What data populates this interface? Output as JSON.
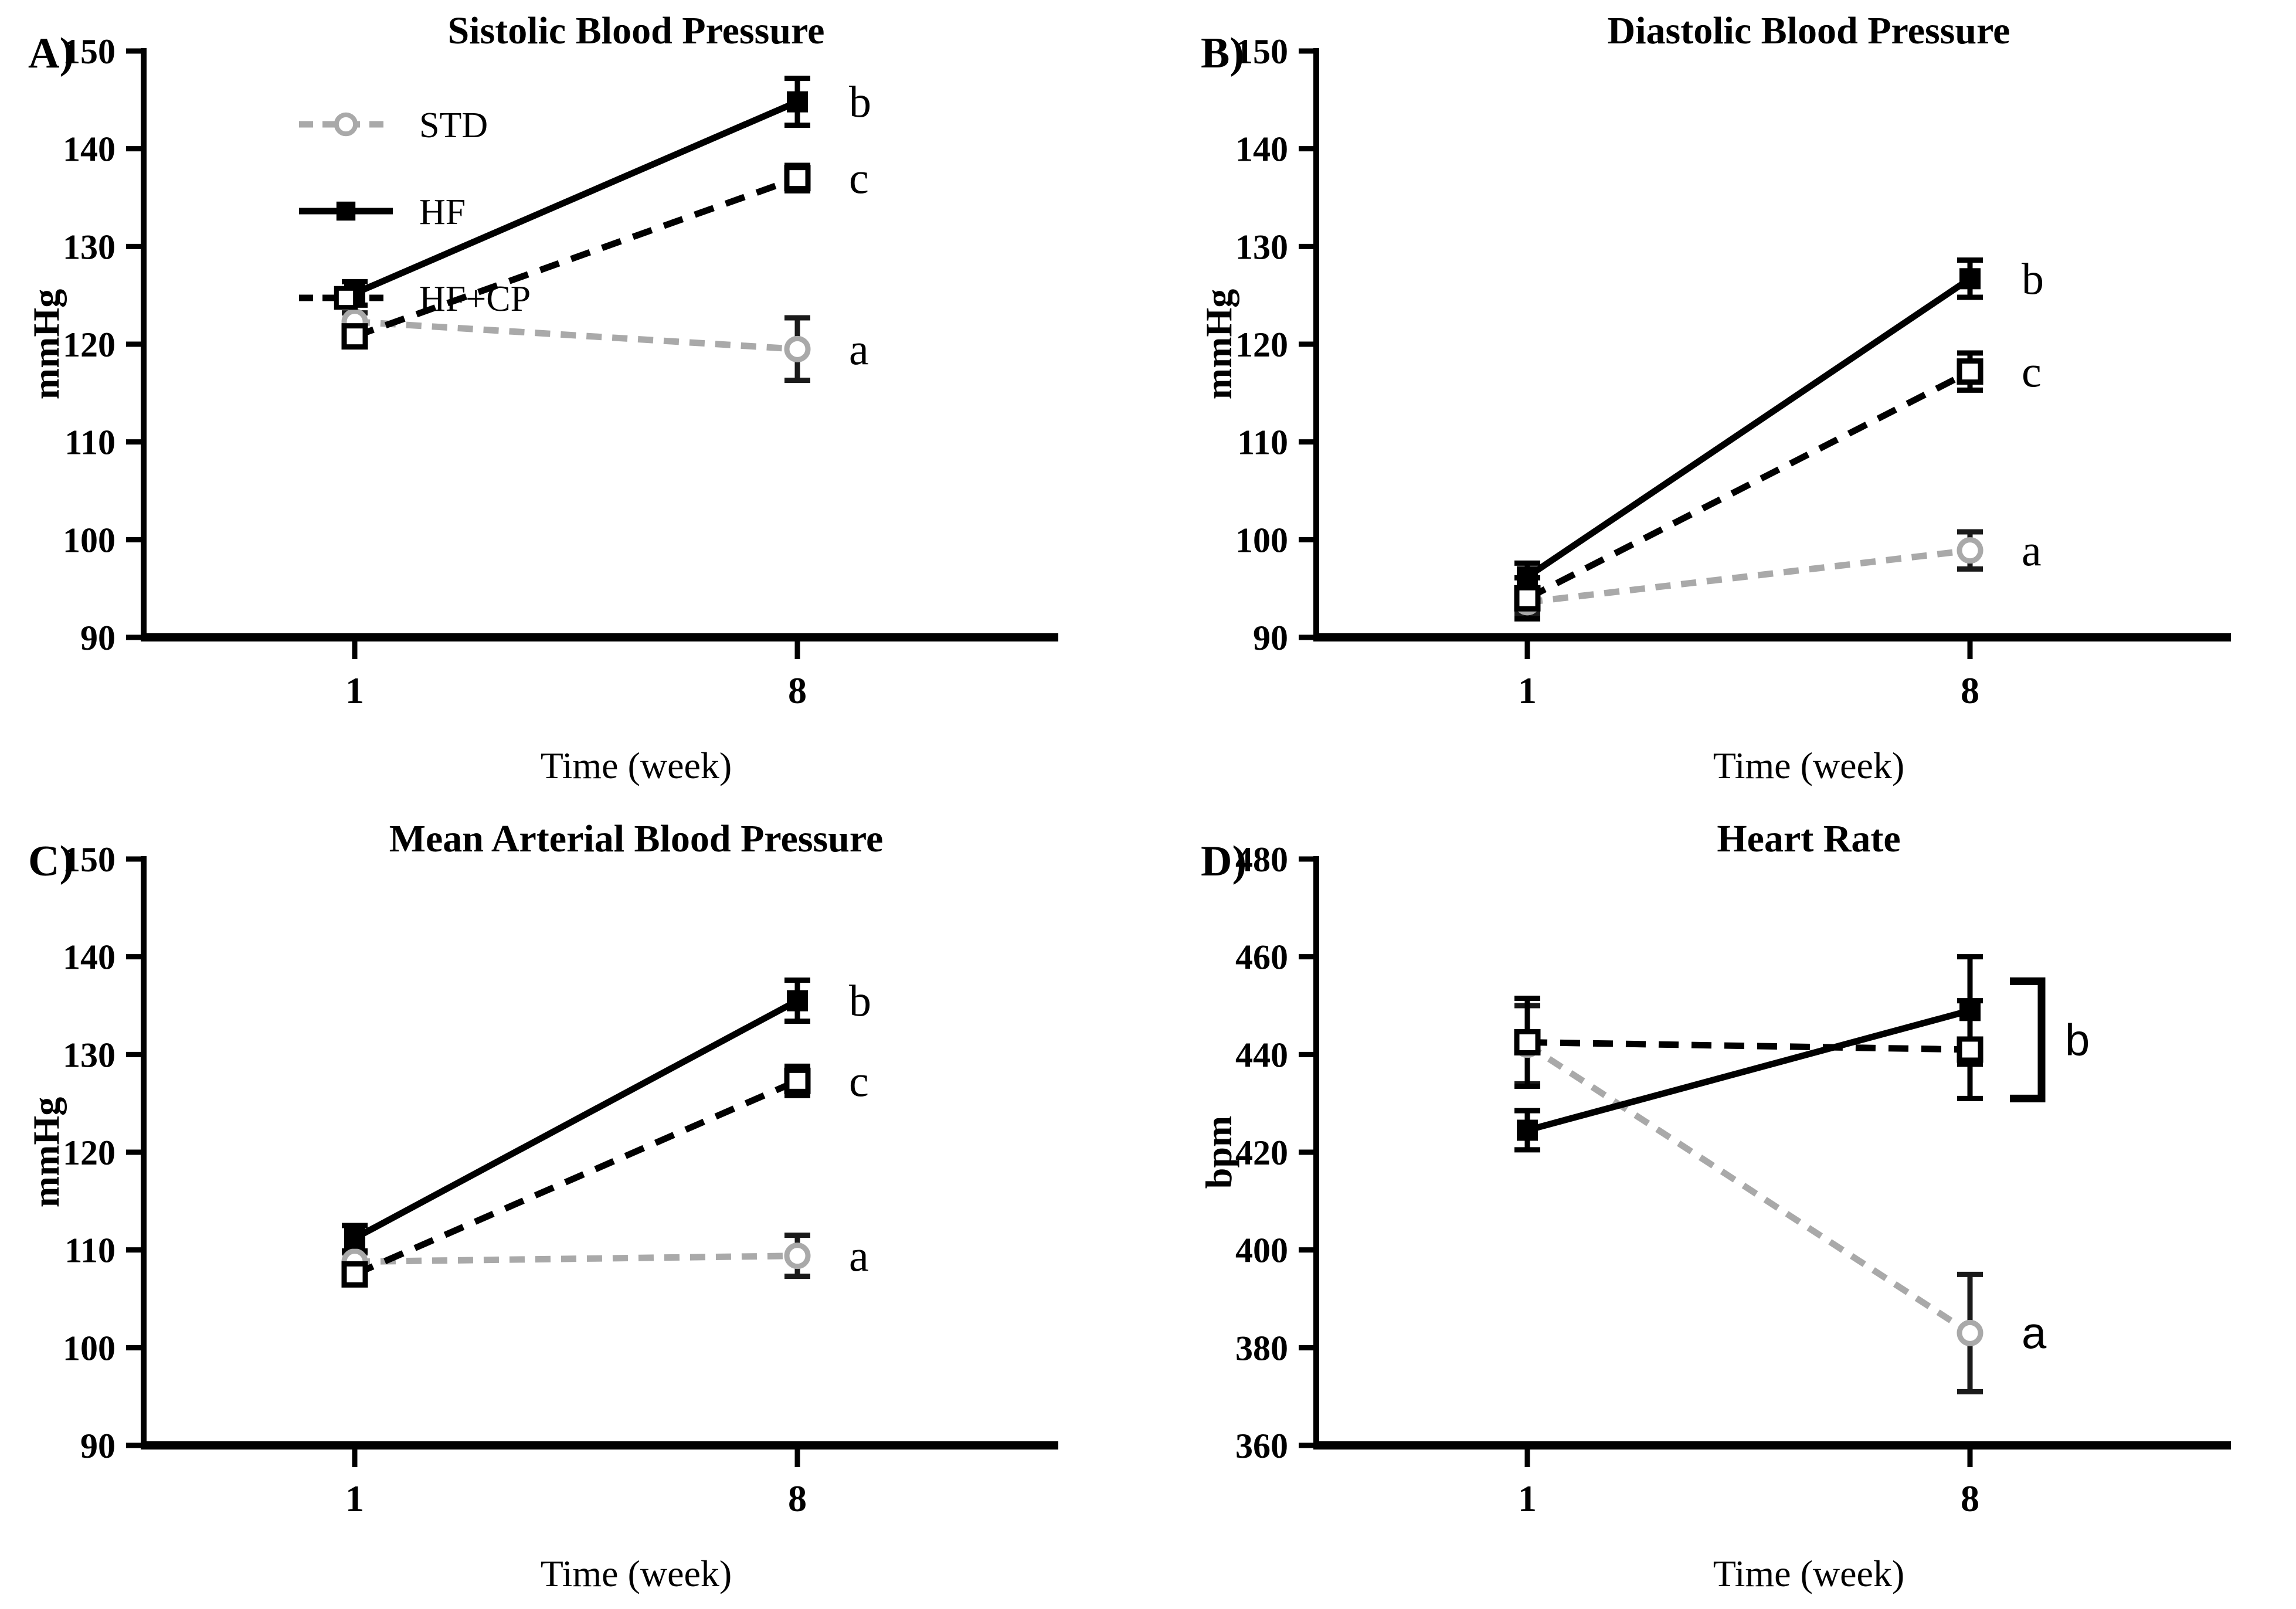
{
  "figure": {
    "background": "#ffffff",
    "accent_black": "#000000",
    "accent_gray": "#A9A9A9",
    "chart_data": [
      {
        "type": "line",
        "panel_letter": "A)",
        "title": "Sistolic Blood Pressure",
        "ylabel": "mmHg",
        "xlabel": "Time (week)",
        "categories": [
          "1",
          "8"
        ],
        "ylim": [
          90,
          150
        ],
        "yticks": [
          90,
          100,
          110,
          120,
          130,
          140,
          150
        ],
        "grid": "off",
        "legend": {
          "show": true,
          "position": "top-left",
          "order": [
            "STD",
            "HF",
            "HF+CP"
          ]
        },
        "annotation_font": "serif",
        "series": [
          {
            "name": "STD",
            "color": "#A9A9A9",
            "line": "dashed",
            "marker": "circle-open",
            "values": [
              122.3,
              119.5
            ],
            "err": [
              0.9,
              3.2
            ],
            "err_color": "#1a1a1a"
          },
          {
            "name": "HF+CP",
            "color": "#000000",
            "line": "dashed",
            "marker": "square-open",
            "values": [
              120.8,
              137.0
            ],
            "err": [
              0.9,
              1.3
            ]
          },
          {
            "name": "HF",
            "color": "#000000",
            "line": "solid",
            "marker": "square-filled",
            "values": [
              125.2,
              144.8
            ],
            "err": [
              1.2,
              2.4
            ]
          }
        ],
        "annotations": [
          {
            "label": "b",
            "series": "HF",
            "point_index": 1
          },
          {
            "label": "c",
            "series": "HF+CP",
            "point_index": 1
          },
          {
            "label": "a",
            "series": "STD",
            "point_index": 1
          }
        ]
      },
      {
        "type": "line",
        "panel_letter": "B)",
        "title": "Diastolic Blood Pressure",
        "ylabel": "mmHg",
        "xlabel": "Time (week)",
        "categories": [
          "1",
          "8"
        ],
        "ylim": [
          90,
          150
        ],
        "yticks": [
          90,
          100,
          110,
          120,
          130,
          140,
          150
        ],
        "grid": "off",
        "legend": {
          "show": false
        },
        "annotation_font": "serif",
        "series": [
          {
            "name": "STD",
            "color": "#A9A9A9",
            "line": "dashed",
            "marker": "circle-open",
            "values": [
              93.6,
              98.9
            ],
            "err": [
              1.2,
              1.9
            ],
            "err_color": "#1a1a1a"
          },
          {
            "name": "HF+CP",
            "color": "#000000",
            "line": "dashed",
            "marker": "square-open",
            "values": [
              94.0,
              117.2
            ],
            "err": [
              2.1,
              1.9
            ]
          },
          {
            "name": "HF",
            "color": "#000000",
            "line": "solid",
            "marker": "square-filled",
            "values": [
              96.2,
              126.7
            ],
            "err": [
              1.4,
              1.9
            ]
          }
        ],
        "annotations": [
          {
            "label": "b",
            "series": "HF",
            "point_index": 1
          },
          {
            "label": "c",
            "series": "HF+CP",
            "point_index": 1
          },
          {
            "label": "a",
            "series": "STD",
            "point_index": 1
          }
        ]
      },
      {
        "type": "line",
        "panel_letter": "C)",
        "title": "Mean Arterial Blood Pressure",
        "ylabel": "mmHg",
        "xlabel": "Time (week)",
        "categories": [
          "1",
          "8"
        ],
        "ylim": [
          90,
          150
        ],
        "yticks": [
          90,
          100,
          110,
          120,
          130,
          140,
          150
        ],
        "grid": "off",
        "legend": {
          "show": false
        },
        "annotation_font": "serif",
        "series": [
          {
            "name": "STD",
            "color": "#A9A9A9",
            "line": "dashed",
            "marker": "circle-open",
            "values": [
              108.8,
              109.4
            ],
            "err": [
              0.9,
              2.1
            ],
            "err_color": "#1a1a1a"
          },
          {
            "name": "HF+CP",
            "color": "#000000",
            "line": "dashed",
            "marker": "square-open",
            "values": [
              107.5,
              127.3
            ],
            "err": [
              0.8,
              1.5
            ]
          },
          {
            "name": "HF",
            "color": "#000000",
            "line": "solid",
            "marker": "square-filled",
            "values": [
              111.2,
              135.5
            ],
            "err": [
              1.3,
              2.1
            ]
          }
        ],
        "annotations": [
          {
            "label": "b",
            "series": "HF",
            "point_index": 1
          },
          {
            "label": "c",
            "series": "HF+CP",
            "point_index": 1
          },
          {
            "label": "a",
            "series": "STD",
            "point_index": 1
          }
        ]
      },
      {
        "type": "line",
        "panel_letter": "D)",
        "title": "Heart Rate",
        "ylabel": "bpm",
        "xlabel": "Time (week)",
        "categories": [
          "1",
          "8"
        ],
        "ylim": [
          360,
          480
        ],
        "yticks": [
          360,
          380,
          400,
          420,
          440,
          460,
          480
        ],
        "grid": "off",
        "legend": {
          "show": false
        },
        "annotation_font": "sans",
        "series": [
          {
            "name": "STD",
            "color": "#A9A9A9",
            "line": "dashed",
            "marker": "circle-open",
            "values": [
              442.0,
              383.0
            ],
            "err": [
              8.0,
              12.0
            ],
            "err_color": "#1a1a1a"
          },
          {
            "name": "HF+CP",
            "color": "#000000",
            "line": "dashed",
            "marker": "square-open",
            "values": [
              442.5,
              441.0
            ],
            "err": [
              9.0,
              10.0
            ]
          },
          {
            "name": "HF",
            "color": "#000000",
            "line": "solid",
            "marker": "square-filled",
            "values": [
              424.5,
              449.0
            ],
            "err": [
              4.0,
              11.0
            ]
          }
        ],
        "annotations": [
          {
            "label": "a",
            "series": "STD",
            "point_index": 1
          }
        ],
        "bracket": {
          "label": "b",
          "category_index": 1,
          "value_top": 455.0,
          "value_bottom": 431.0
        }
      }
    ]
  }
}
